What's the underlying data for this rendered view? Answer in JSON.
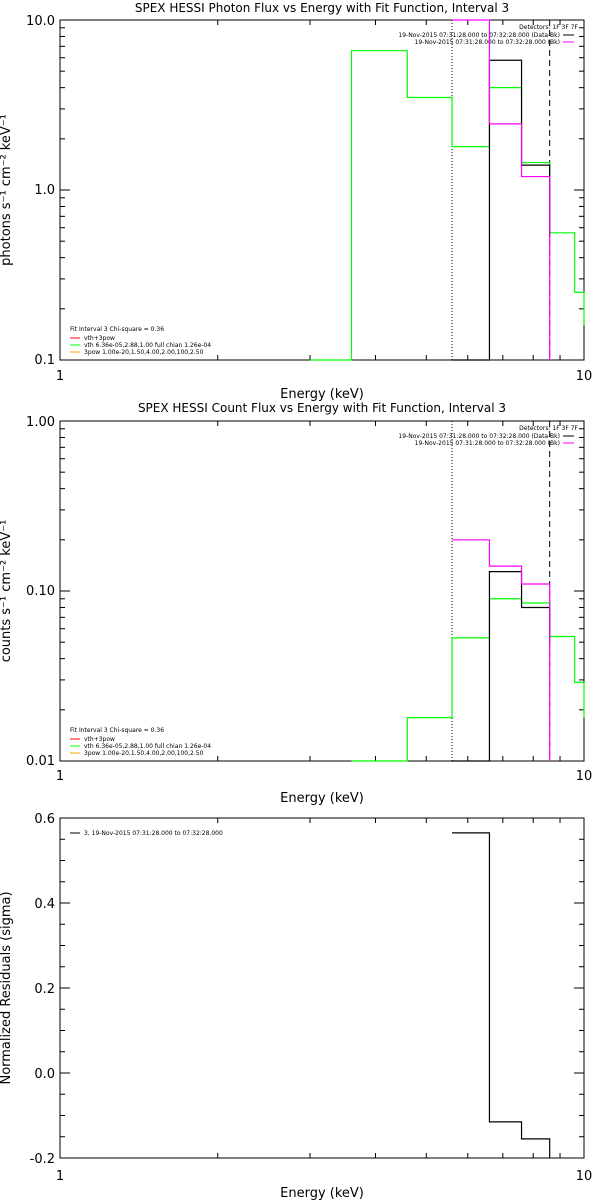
{
  "chart_data": [
    {
      "type": "line",
      "title": "SPEX HESSI Photon Flux vs Energy with Fit Function, Interval 3",
      "xlabel": "Energy (keV)",
      "ylabel": "photons s⁻¹ cm⁻² keV⁻¹",
      "xscale": "log",
      "yscale": "log",
      "xlim": [
        1,
        10
      ],
      "ylim": [
        0.1,
        10
      ],
      "xticks": [
        "1",
        "10"
      ],
      "yticks": [
        "0.1",
        "1.0",
        "10.0"
      ],
      "info_lines": [
        "Detectors: 1F 3F 7F",
        "19-Nov-2015 07:31:28.000 to 07:32:28.000 (Data-Bk)",
        "19-Nov-2015 07:31:28.000 to 07:32:28.000 (Bk)"
      ],
      "fit_text": [
        "Fit Interval 3   Chi-square = 0.36",
        "vth+3pow",
        "vth 6.36e-05,2.88,1.00   full chian 1.26e-04",
        "3pow 1.00e-20,1.50,4.00,2.00,100,2.50"
      ],
      "series": [
        {
          "color": "#00ff00",
          "x": [
            3.0,
            3.6,
            4.6,
            5.6,
            6.6,
            7.6,
            8.6,
            9.6,
            10.0
          ],
          "y": [
            0.1,
            6.6,
            3.5,
            1.8,
            4.0,
            1.45,
            0.56,
            0.25,
            0.16
          ]
        },
        {
          "color": "#000000",
          "x": [
            5.6,
            6.6,
            7.6,
            8.6
          ],
          "y": [
            0.1,
            5.8,
            1.4,
            0.53
          ]
        },
        {
          "color": "#ff00ff",
          "x": [
            5.6,
            6.6,
            7.6,
            8.6
          ],
          "y": [
            10.0,
            2.45,
            1.2,
            0.1
          ]
        }
      ],
      "markers": [
        {
          "x": 5.6,
          "style": "dotted"
        },
        {
          "x": 8.6,
          "style": "dashed"
        }
      ]
    },
    {
      "type": "line",
      "title": "SPEX HESSI Count Flux vs Energy with Fit Function, Interval 3",
      "xlabel": "Energy (keV)",
      "ylabel": "counts s⁻¹ cm⁻² keV⁻¹",
      "xscale": "log",
      "yscale": "log",
      "xlim": [
        1,
        10
      ],
      "ylim": [
        0.01,
        1
      ],
      "xticks": [
        "1",
        "10"
      ],
      "yticks": [
        "0.01",
        "0.10",
        "1.00"
      ],
      "info_lines": [
        "Detectors: 1F 3F 7F",
        "19-Nov-2015 07:31:28.000 to 07:32:28.000 (Data-Bk)",
        "19-Nov-2015 07:31:28.000 to 07:32:28.000 (Bk)"
      ],
      "fit_text": [
        "Fit Interval 3   Chi-square = 0.36",
        "vth+3pow",
        "vth 6.36e-05,2.88,1.00   full chian 1.26e-04",
        "3pow 1.00e-20,1.50,4.00,2.00,100,2.50"
      ],
      "series": [
        {
          "color": "#00ff00",
          "x": [
            3.6,
            4.6,
            5.6,
            6.6,
            7.6,
            8.6,
            9.6,
            10.0
          ],
          "y": [
            0.01,
            0.018,
            0.053,
            0.09,
            0.085,
            0.054,
            0.029,
            0.018
          ]
        },
        {
          "color": "#000000",
          "x": [
            5.6,
            6.6,
            7.6,
            8.6
          ],
          "y": [
            0.01,
            0.13,
            0.08,
            0.05
          ]
        },
        {
          "color": "#ff00ff",
          "x": [
            5.6,
            6.6,
            7.6,
            8.6
          ],
          "y": [
            0.2,
            0.14,
            0.11,
            0.01
          ]
        }
      ],
      "markers": [
        {
          "x": 5.6,
          "style": "dotted"
        },
        {
          "x": 8.6,
          "style": "dashed"
        }
      ]
    },
    {
      "type": "line",
      "title": "",
      "xlabel": "Energy (keV)",
      "ylabel": "Normalized Residuals (sigma)",
      "xscale": "log",
      "yscale": "linear",
      "xlim": [
        1,
        10
      ],
      "ylim": [
        -0.2,
        0.6
      ],
      "xticks": [
        "1",
        "10"
      ],
      "yticks": [
        "-0.2",
        "0.0",
        "0.2",
        "0.4",
        "0.6"
      ],
      "legend": "3, 19-Nov-2015 07:31:28.000 to 07:32:28.000",
      "series": [
        {
          "color": "#000000",
          "x": [
            5.6,
            6.6,
            7.6,
            8.6
          ],
          "y": [
            0.565,
            -0.115,
            -0.155,
            -0.2
          ]
        }
      ]
    }
  ]
}
